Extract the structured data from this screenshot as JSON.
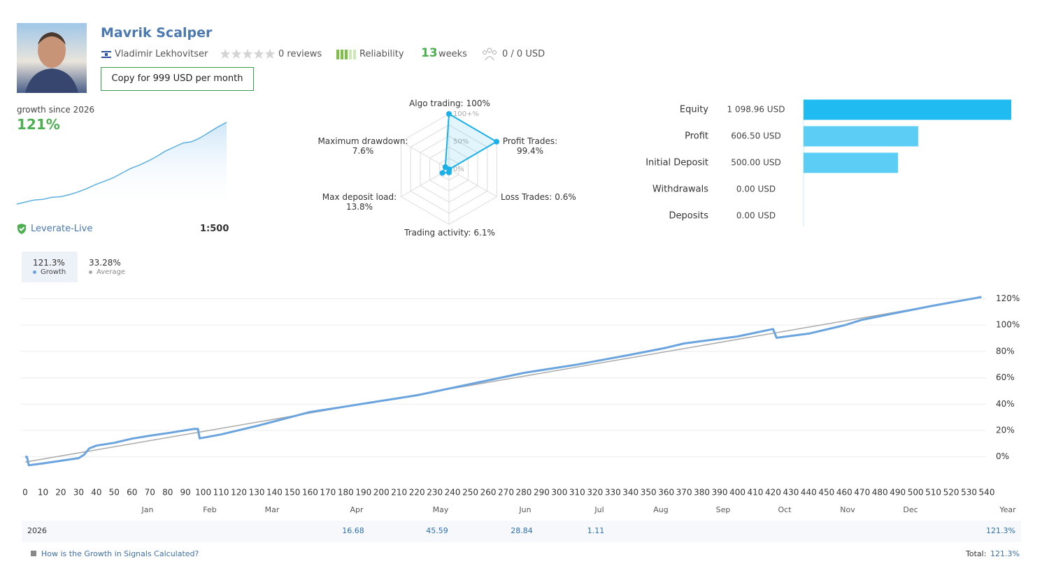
{
  "header": {
    "name": "Mavrik Scalper",
    "author": "Vladimir Lekhovitser",
    "reviews": "0 reviews",
    "reliability": "Reliability",
    "weeks_count": 13,
    "weeks_label": "weeks",
    "subscribers": "0 / 0 USD",
    "copy_button": "Copy for 999 USD per month"
  },
  "account": {
    "growth_label": "growth since 2026",
    "growth_value": "121%",
    "broker": "Leverate-Live",
    "leverage": "1:500"
  },
  "chart_data": [
    {
      "type": "area",
      "values": [
        -1,
        2,
        5,
        6,
        9,
        10,
        13,
        17,
        22,
        28,
        33,
        38,
        45,
        52,
        57,
        63,
        70,
        78,
        84,
        90,
        92,
        98,
        106,
        114,
        121
      ],
      "color": "#5aaee0"
    },
    {
      "type": "radar",
      "categories": [
        "Algo trading:",
        "Profit Trades:",
        "Loss Trades:",
        "Trading activity:",
        "Max deposit load:",
        "Maximum drawdown:"
      ],
      "values": [
        100,
        99.4,
        0.6,
        6.1,
        13.8,
        7.6
      ],
      "value_labels": [
        "100%",
        "99.4%",
        "0.6%",
        "6.1%",
        "13.8%",
        "7.6%"
      ],
      "rlim": [
        0,
        100
      ],
      "rticks": [
        {
          "value": 0,
          "label": "0%"
        },
        {
          "value": 50,
          "label": "50%"
        },
        {
          "value": 100,
          "label": "100+%"
        }
      ],
      "color": "#1ab0e8"
    },
    {
      "type": "hbar",
      "categories": [
        "Equity",
        "Profit",
        "Initial Deposit",
        "Withdrawals",
        "Deposits"
      ],
      "values": [
        1098.96,
        606.5,
        500,
        0,
        0
      ],
      "value_labels": [
        "1 098.96 USD",
        "606.50 USD",
        "500.00 USD",
        "0.00 USD",
        "0.00 USD"
      ],
      "colors": [
        "#20bcf1",
        "#5ccdf5",
        "#5ccdf5",
        "#5ccdf5",
        "#5ccdf5"
      ]
    },
    {
      "type": "line",
      "series": [
        {
          "name": "Growth",
          "legend_label": "121.3%",
          "color": "#6aa4de",
          "x": [
            0,
            1,
            2,
            10,
            20,
            30,
            33,
            36,
            40,
            50,
            60,
            70,
            80,
            95,
            97,
            98,
            110,
            130,
            160,
            180,
            200,
            220,
            250,
            280,
            310,
            340,
            360,
            370,
            400,
            420,
            422,
            440,
            460,
            470,
            490,
            510,
            537
          ],
          "values": [
            0,
            0,
            -6.4,
            -5,
            -3,
            -1,
            1.5,
            6.4,
            8.5,
            10.6,
            13.8,
            16,
            18,
            21.2,
            21.2,
            14,
            17,
            23.4,
            34,
            38.2,
            42.5,
            46.7,
            55.2,
            63.7,
            70,
            77.5,
            82.8,
            86,
            91.3,
            97,
            90.3,
            93.5,
            99.8,
            104,
            109.4,
            114.7,
            121.3
          ]
        },
        {
          "name": "Average",
          "legend_label": "33.28%",
          "color": "#aaaaaa",
          "x": [
            0,
            537
          ],
          "values": [
            -4,
            121
          ]
        }
      ],
      "xlim": [
        0,
        540
      ],
      "xticks": [
        0,
        10,
        20,
        30,
        40,
        50,
        60,
        70,
        80,
        90,
        100,
        110,
        120,
        130,
        140,
        150,
        160,
        170,
        180,
        190,
        200,
        210,
        220,
        230,
        240,
        250,
        260,
        270,
        280,
        290,
        300,
        310,
        320,
        330,
        340,
        350,
        360,
        370,
        380,
        390,
        400,
        410,
        420,
        430,
        440,
        450,
        460,
        470,
        480,
        490,
        500,
        510,
        520,
        530,
        540
      ],
      "ylim": [
        -15,
        125
      ],
      "yticks": [
        {
          "value": 0,
          "label": "0%"
        },
        {
          "value": 20,
          "label": "20%"
        },
        {
          "value": 40,
          "label": "40%"
        },
        {
          "value": 60,
          "label": "60%"
        },
        {
          "value": 80,
          "label": "80%"
        },
        {
          "value": 100,
          "label": "100%"
        },
        {
          "value": 120,
          "label": "120%"
        }
      ],
      "grid": true
    }
  ],
  "monthly_table": {
    "columns": [
      "Jan",
      "Feb",
      "Mar",
      "Apr",
      "May",
      "Jun",
      "Jul",
      "Aug",
      "Sep",
      "Oct",
      "Nov",
      "Dec",
      "Year"
    ],
    "rows": [
      {
        "year": "2026",
        "cells": [
          null,
          null,
          null,
          16.68,
          45.59,
          28.84,
          1.11,
          null,
          null,
          null,
          null,
          null,
          "121.3%"
        ]
      }
    ]
  },
  "footer": {
    "help_link": "How is the Growth in Signals Calculated?",
    "total_label": "Total:",
    "total_value": "121.3%"
  }
}
